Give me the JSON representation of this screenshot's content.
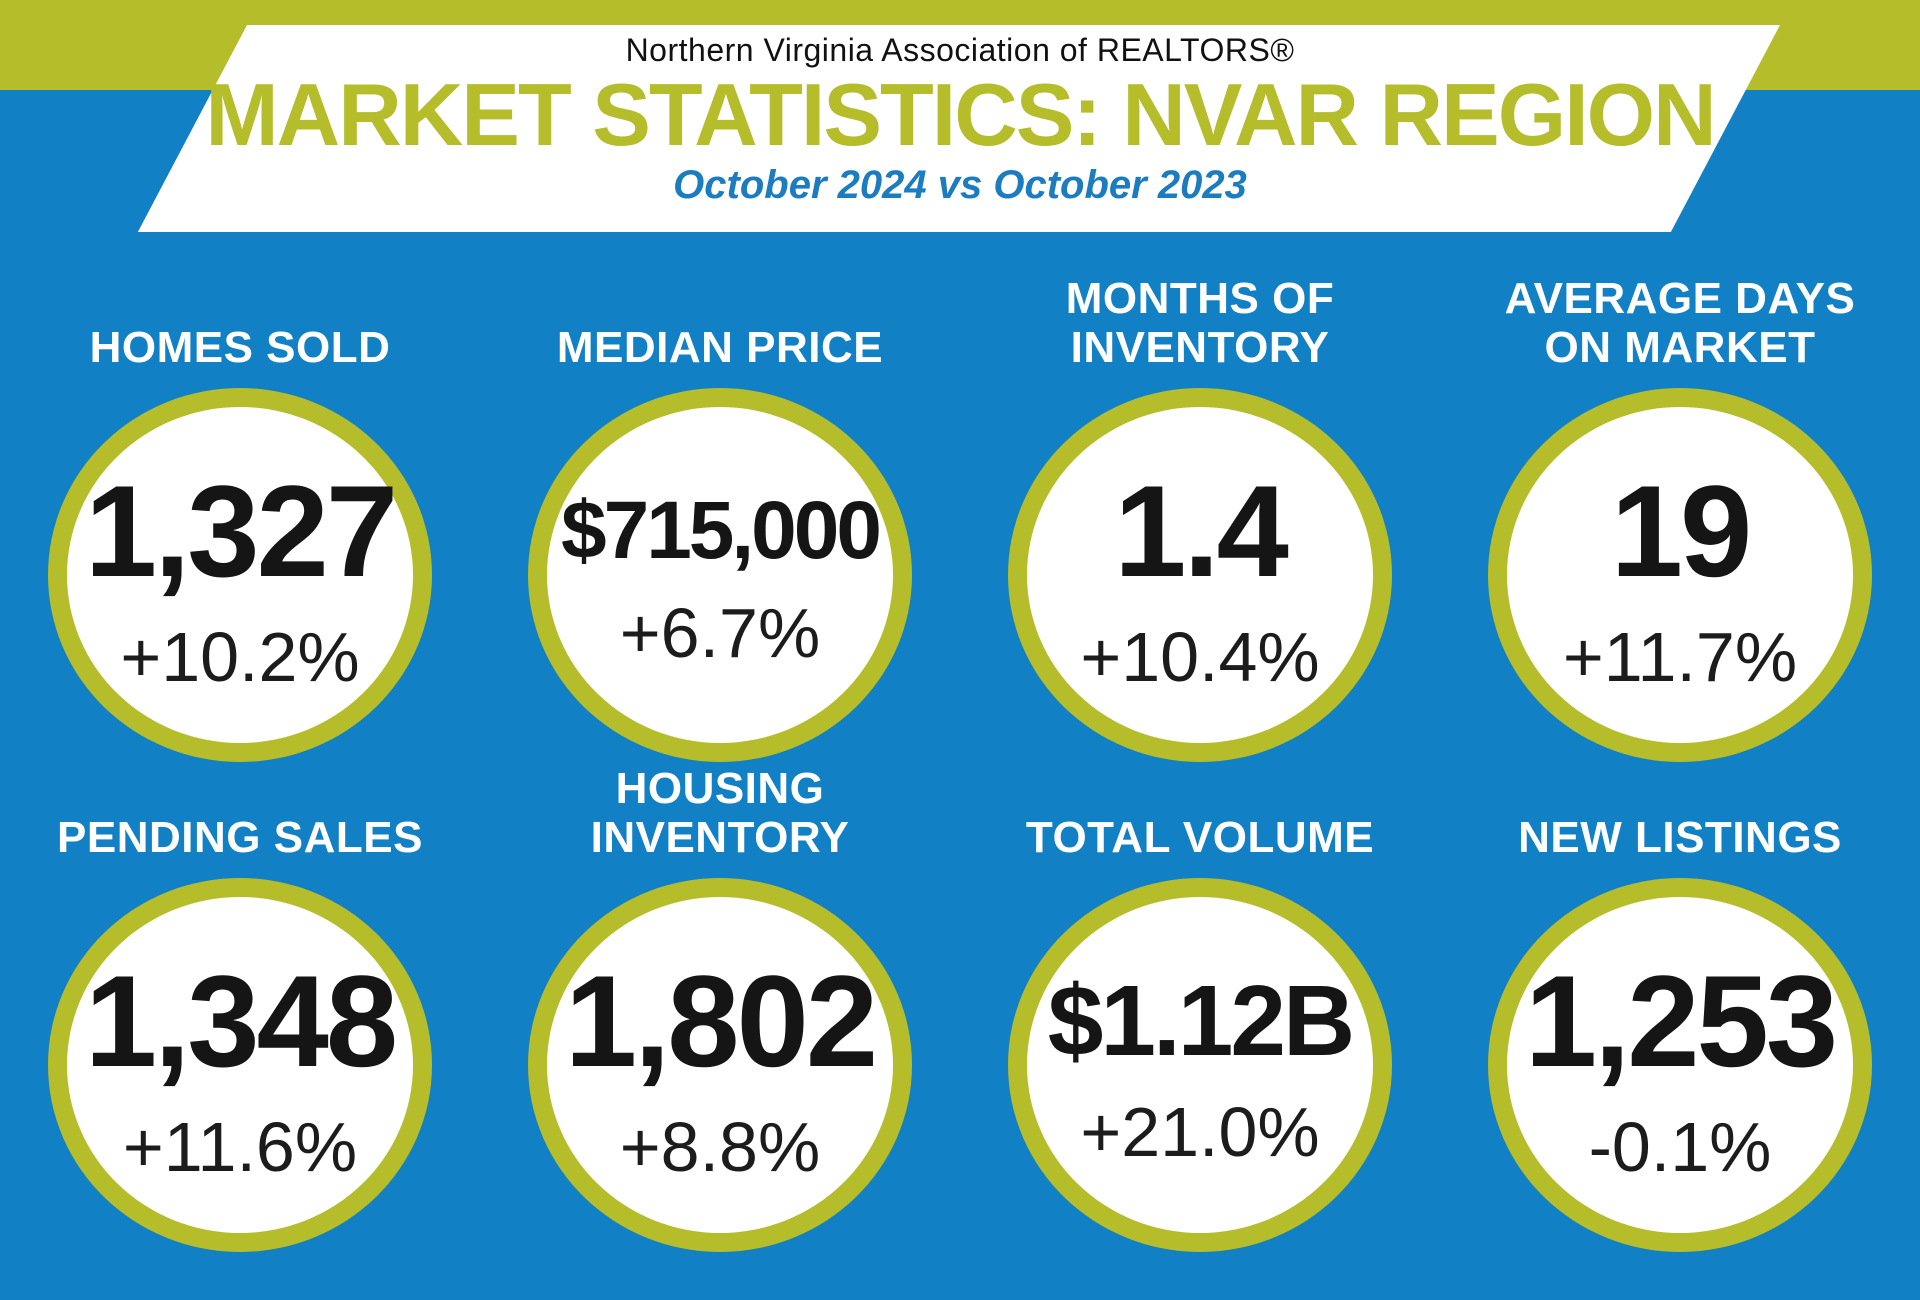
{
  "colors": {
    "background_blue": "#1280c4",
    "lime_green": "#b5bd2b",
    "subtitle_blue": "#1b7cc0",
    "text_black": "#151515",
    "text_white": "#ffffff"
  },
  "header": {
    "org_name": "Northern Virginia Association of REALTORS®",
    "title": "MARKET STATISTICS: NVAR REGION",
    "subtitle": "October 2024 vs October 2023"
  },
  "stats": [
    {
      "label": "HOMES SOLD",
      "value": "1,327",
      "change": "+10.2%"
    },
    {
      "label": "MEDIAN PRICE",
      "value": "$715,000",
      "change": "+6.7%"
    },
    {
      "label": "MONTHS OF\nINVENTORY",
      "value": "1.4",
      "change": "+10.4%"
    },
    {
      "label": "AVERAGE DAYS\nON MARKET",
      "value": "19",
      "change": "+11.7%"
    },
    {
      "label": "PENDING SALES",
      "value": "1,348",
      "change": "+11.6%"
    },
    {
      "label": "HOUSING INVENTORY",
      "value": "1,802",
      "change": "+8.8%"
    },
    {
      "label": "TOTAL VOLUME",
      "value": "$1.12B",
      "change": "+21.0%"
    },
    {
      "label": "NEW LISTINGS",
      "value": "1,253",
      "change": "-0.1%"
    }
  ],
  "chart_data": {
    "type": "table",
    "title": "MARKET STATISTICS: NVAR REGION",
    "subtitle": "October 2024 vs October 2023",
    "comparison": "October 2024 vs October 2023",
    "metrics": [
      {
        "name": "Homes Sold",
        "value": 1327,
        "display": "1,327",
        "change_pct": 10.2
      },
      {
        "name": "Median Price",
        "value": 715000,
        "display": "$715,000",
        "change_pct": 6.7
      },
      {
        "name": "Months of Inventory",
        "value": 1.4,
        "display": "1.4",
        "change_pct": 10.4
      },
      {
        "name": "Average Days on Market",
        "value": 19,
        "display": "19",
        "change_pct": 11.7
      },
      {
        "name": "Pending Sales",
        "value": 1348,
        "display": "1,348",
        "change_pct": 11.6
      },
      {
        "name": "Housing Inventory",
        "value": 1802,
        "display": "1,802",
        "change_pct": 8.8
      },
      {
        "name": "Total Volume",
        "value": 1120000000,
        "display": "$1.12B",
        "change_pct": 21.0
      },
      {
        "name": "New Listings",
        "value": 1253,
        "display": "1,253",
        "change_pct": -0.1
      }
    ]
  }
}
